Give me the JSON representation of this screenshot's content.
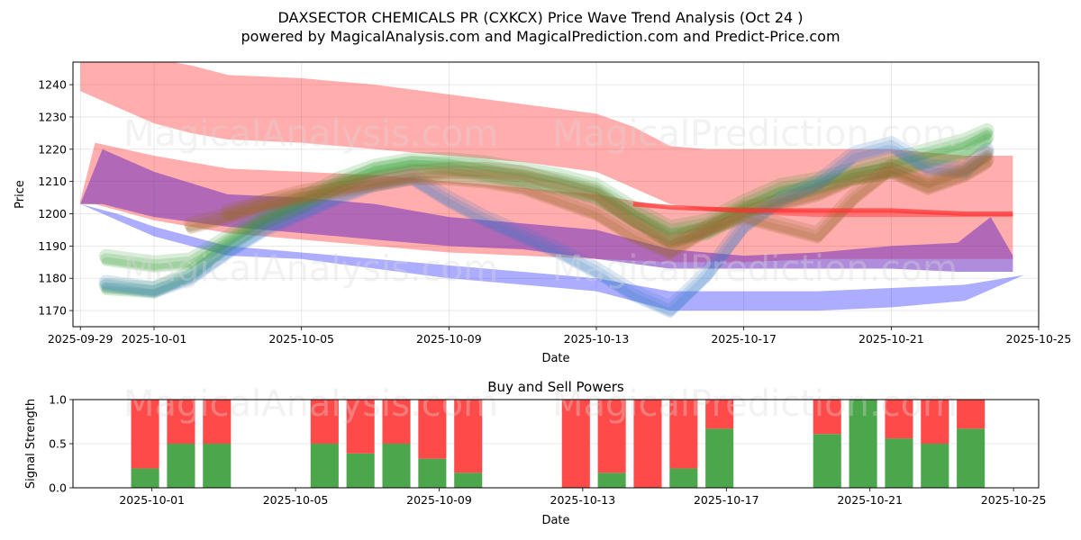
{
  "header": {
    "title": "DAXSECTOR CHEMICALS PR (CXKCX) Price Wave Trend Analysis (Oct 24 )",
    "subtitle": "powered by MagicalAnalysis.com and MagicalPrediction.com and Predict-Price.com"
  },
  "watermarks": [
    "MagicalAnalysis.com",
    "MagicalPrediction.com"
  ],
  "chart_data": [
    {
      "type": "area",
      "title": "",
      "xlabel": "Date",
      "ylabel": "Price",
      "x_start": "2025-09-29",
      "xlim_days": [
        -0.2,
        26.0
      ],
      "ylim": [
        1165,
        1247
      ],
      "grid": true,
      "x_ticks": [
        {
          "day": 0,
          "label": "2025-09-29"
        },
        {
          "day": 2,
          "label": "2025-10-01"
        },
        {
          "day": 6,
          "label": "2025-10-05"
        },
        {
          "day": 10,
          "label": "2025-10-09"
        },
        {
          "day": 14,
          "label": "2025-10-13"
        },
        {
          "day": 18,
          "label": "2025-10-17"
        },
        {
          "day": 22,
          "label": "2025-10-21"
        },
        {
          "day": 26,
          "label": "2025-10-25"
        }
      ],
      "y_ticks": [
        1170,
        1180,
        1190,
        1200,
        1210,
        1220,
        1230,
        1240
      ],
      "bands": [
        {
          "name": "upper-red-band",
          "color": "#ff0000",
          "opacity": 0.32,
          "x": [
            0,
            1,
            2,
            3,
            4,
            6,
            8,
            10,
            12,
            14,
            15,
            16,
            17,
            18,
            20,
            22,
            24,
            25.3
          ],
          "upper": [
            1250,
            1250,
            1248,
            1246,
            1243,
            1242,
            1240,
            1237,
            1234,
            1231,
            1227,
            1221,
            1220,
            1220,
            1220,
            1220,
            1218,
            1218
          ],
          "lower": [
            1238,
            1233,
            1228,
            1225,
            1223,
            1222,
            1220,
            1218,
            1216,
            1213,
            1208,
            1203,
            1201,
            1200,
            1199,
            1199,
            1199,
            1199
          ]
        },
        {
          "name": "middle-red-band",
          "color": "#ff0000",
          "opacity": 0.32,
          "x": [
            0,
            0.4,
            2,
            4,
            6,
            8,
            10,
            12,
            14,
            16,
            18,
            20,
            22,
            24,
            25.3
          ],
          "upper": [
            1204,
            1222,
            1218,
            1214,
            1213,
            1212,
            1210,
            1208,
            1206,
            1202,
            1202,
            1201,
            1201,
            1200,
            1200
          ],
          "lower": [
            1203,
            1203,
            1198,
            1194,
            1192,
            1190,
            1188,
            1187,
            1186,
            1185,
            1185,
            1186,
            1186,
            1186,
            1186
          ]
        },
        {
          "name": "purple-band",
          "color": "#7030c0",
          "opacity": 0.55,
          "x": [
            0,
            0.6,
            2,
            4,
            6,
            8,
            10,
            12,
            14,
            16,
            18,
            20,
            22,
            23.8,
            24.7,
            25.3
          ],
          "upper": [
            1203,
            1220,
            1213,
            1206,
            1205,
            1203,
            1199,
            1197,
            1195,
            1189,
            1187,
            1188,
            1190,
            1191,
            1199,
            1187
          ],
          "lower": [
            1203,
            1203,
            1199,
            1196,
            1194,
            1192,
            1190,
            1189,
            1186,
            1183,
            1183,
            1183,
            1183,
            1182,
            1182,
            1182
          ]
        },
        {
          "name": "blue-band",
          "color": "#0000ff",
          "opacity": 0.32,
          "x": [
            0,
            1,
            2,
            4,
            6,
            8,
            10,
            12,
            14,
            16,
            18,
            20,
            22,
            24,
            25.6
          ],
          "upper": [
            1203,
            1200,
            1196,
            1190,
            1188,
            1186,
            1184,
            1182,
            1180,
            1176,
            1176,
            1176,
            1177,
            1178,
            1181
          ],
          "lower": [
            1203,
            1198,
            1193,
            1187,
            1186,
            1183,
            1180,
            1178,
            1176,
            1170,
            1170,
            1170,
            1171,
            1173,
            1181
          ]
        }
      ],
      "center_line": {
        "name": "red-trend-line",
        "color": "#ff3030",
        "x": [
          15,
          16,
          18,
          20,
          22,
          24,
          25.3
        ],
        "y": [
          1203,
          1202,
          1201,
          1201,
          1201,
          1200,
          1200
        ]
      },
      "wave_paths": [
        {
          "color": "#2e9a2e",
          "opacity": 0.18,
          "x": [
            0.7,
            2,
            3,
            4,
            5,
            6,
            7,
            8,
            9,
            10,
            11,
            12,
            13,
            14,
            15,
            16,
            17,
            18,
            19,
            20,
            21,
            22,
            23,
            24,
            24.6
          ],
          "y": [
            1177,
            1176,
            1181,
            1190,
            1197,
            1202,
            1208,
            1213,
            1215,
            1214,
            1212,
            1210,
            1208,
            1205,
            1198,
            1192,
            1194,
            1200,
            1205,
            1208,
            1211,
            1213,
            1216,
            1219,
            1223
          ]
        },
        {
          "color": "#2e9a2e",
          "opacity": 0.18,
          "x": [
            0.7,
            2,
            3,
            4,
            5,
            6,
            7,
            8,
            9,
            10,
            11,
            12,
            13,
            14,
            15,
            16,
            17,
            18,
            19,
            20,
            21,
            22,
            23,
            24,
            24.6
          ],
          "y": [
            1186,
            1184,
            1185,
            1192,
            1199,
            1204,
            1210,
            1214,
            1216,
            1216,
            1215,
            1213,
            1211,
            1208,
            1201,
            1195,
            1197,
            1203,
            1208,
            1210,
            1213,
            1216,
            1219,
            1222,
            1225
          ]
        },
        {
          "color": "#3a78c8",
          "opacity": 0.18,
          "x": [
            0.7,
            2,
            3,
            4,
            5,
            6,
            7,
            8,
            9,
            10,
            11,
            12,
            13,
            14,
            15,
            16,
            17,
            18,
            19,
            20,
            21,
            22,
            23,
            24,
            24.6
          ],
          "y": [
            1178,
            1176,
            1180,
            1188,
            1195,
            1200,
            1205,
            1209,
            1211,
            1204,
            1198,
            1193,
            1188,
            1182,
            1175,
            1170,
            1181,
            1196,
            1204,
            1209,
            1218,
            1221,
            1214,
            1213,
            1219
          ]
        },
        {
          "color": "#9a6a30",
          "opacity": 0.22,
          "x": [
            3,
            4,
            5,
            6,
            7,
            8,
            9,
            10,
            11,
            12,
            13,
            14,
            15,
            16,
            17,
            18,
            19,
            20,
            21,
            22,
            23,
            24,
            24.6
          ],
          "y": [
            1196,
            1199,
            1203,
            1206,
            1208,
            1210,
            1212,
            1213,
            1213,
            1212,
            1209,
            1206,
            1198,
            1191,
            1195,
            1201,
            1203,
            1206,
            1211,
            1213,
            1208,
            1212,
            1216
          ]
        },
        {
          "color": "#9a6a30",
          "opacity": 0.2,
          "x": [
            4,
            5,
            6,
            7,
            8,
            9,
            10,
            11,
            12,
            13,
            14,
            15,
            16,
            17,
            18,
            19,
            20,
            21,
            22,
            23,
            24,
            24.6
          ],
          "y": [
            1200,
            1203,
            1205,
            1207,
            1209,
            1211,
            1211,
            1210,
            1208,
            1204,
            1200,
            1193,
            1188,
            1195,
            1199,
            1196,
            1193,
            1205,
            1214,
            1210,
            1214,
            1218
          ]
        }
      ],
      "legend": "none"
    },
    {
      "type": "bar",
      "title": "Buy and Sell Powers",
      "xlabel": "Date",
      "ylabel": "Signal Strength",
      "ylim": [
        0,
        1
      ],
      "y_ticks": [
        {
          "value": 0.0,
          "label": "0.0"
        },
        {
          "value": 0.5,
          "label": "0.5"
        },
        {
          "value": 1.0,
          "label": "1.0"
        }
      ],
      "x_start": "2025-09-29",
      "xlim_days": [
        -0.2,
        26.7
      ],
      "x_ticks": [
        {
          "day": 2,
          "label": "2025-10-01"
        },
        {
          "day": 6,
          "label": "2025-10-05"
        },
        {
          "day": 10,
          "label": "2025-10-09"
        },
        {
          "day": 14,
          "label": "2025-10-13"
        },
        {
          "day": 18,
          "label": "2025-10-17"
        },
        {
          "day": 22,
          "label": "2025-10-21"
        },
        {
          "day": 26,
          "label": "2025-10-25"
        }
      ],
      "categories": [
        "2025-10-01",
        "2025-10-02",
        "2025-10-03",
        "2025-10-06",
        "2025-10-07",
        "2025-10-08",
        "2025-10-09",
        "2025-10-10",
        "2025-10-13",
        "2025-10-14",
        "2025-10-15",
        "2025-10-16",
        "2025-10-17",
        "2025-10-20",
        "2025-10-21",
        "2025-10-22",
        "2025-10-23",
        "2025-10-24"
      ],
      "category_days": [
        2,
        3,
        4,
        7,
        8,
        9,
        10,
        11,
        14,
        15,
        16,
        17,
        18,
        21,
        22,
        23,
        24,
        25
      ],
      "series": [
        {
          "name": "Buy Power",
          "color": "#4ca64c",
          "values": [
            0.22,
            0.5,
            0.5,
            0.5,
            0.39,
            0.5,
            0.33,
            0.17,
            0.0,
            0.17,
            0.0,
            0.22,
            0.67,
            0.61,
            1.0,
            0.56,
            0.5,
            0.67
          ]
        },
        {
          "name": "Sell Power",
          "color": "#ff4a4a",
          "values": [
            0.78,
            0.5,
            0.5,
            0.5,
            0.61,
            0.5,
            0.67,
            0.83,
            1.0,
            0.83,
            1.0,
            0.78,
            0.33,
            0.39,
            0.0,
            0.44,
            0.5,
            0.33
          ]
        }
      ],
      "grid": true,
      "legend": "none"
    }
  ]
}
